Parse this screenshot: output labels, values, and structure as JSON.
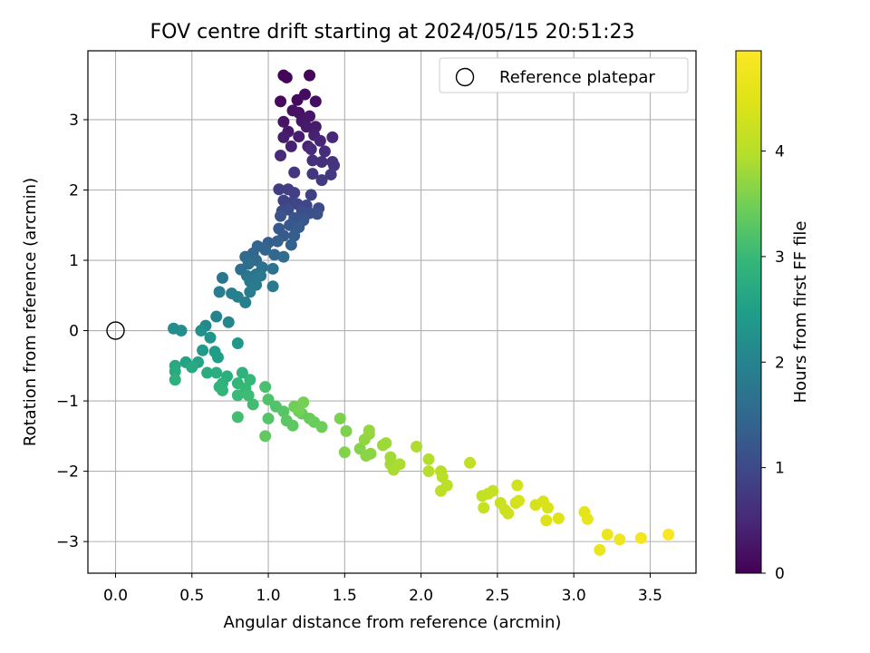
{
  "chart_data": {
    "type": "scatter",
    "title": "FOV centre drift starting at 2024/05/15 20:51:23",
    "xlabel": "Angular distance from reference (arcmin)",
    "ylabel": "Rotation from reference (arcmin)",
    "xlim": [
      -0.181,
      3.8
    ],
    "ylim": [
      -3.45,
      3.98
    ],
    "xticks": [
      "0.0",
      "0.5",
      "1.0",
      "1.5",
      "2.0",
      "2.5",
      "3.0",
      "3.5"
    ],
    "xtick_values": [
      0,
      0.5,
      1.0,
      1.5,
      2.0,
      2.5,
      3.0,
      3.5
    ],
    "yticks": [
      "−3",
      "−2",
      "−1",
      "0",
      "1",
      "2",
      "3"
    ],
    "ytick_values": [
      -3,
      -2,
      -1,
      0,
      1,
      2,
      3
    ],
    "grid": true,
    "legend": {
      "position": "top-right",
      "label": "Reference platepar"
    },
    "reference_point": {
      "x": 0.0,
      "y": 0.0
    },
    "colorbar": {
      "label": "Hours from first FF file",
      "colormap": "viridis",
      "range": [
        0,
        4.95
      ],
      "ticks": [
        "0",
        "1",
        "2",
        "3",
        "4"
      ],
      "tick_values": [
        0,
        1,
        2,
        3,
        4
      ]
    },
    "points": [
      {
        "x": 1.1,
        "y": 3.63,
        "h": 0.05
      },
      {
        "x": 1.12,
        "y": 3.6,
        "h": 0.05
      },
      {
        "x": 1.27,
        "y": 3.63,
        "h": 0.07
      },
      {
        "x": 1.08,
        "y": 3.26,
        "h": 0.12
      },
      {
        "x": 1.19,
        "y": 3.28,
        "h": 0.12
      },
      {
        "x": 1.24,
        "y": 3.36,
        "h": 0.15
      },
      {
        "x": 1.31,
        "y": 3.26,
        "h": 0.17
      },
      {
        "x": 1.16,
        "y": 3.13,
        "h": 0.2
      },
      {
        "x": 1.2,
        "y": 3.1,
        "h": 0.22
      },
      {
        "x": 1.1,
        "y": 2.97,
        "h": 0.25
      },
      {
        "x": 1.22,
        "y": 2.98,
        "h": 0.27
      },
      {
        "x": 1.27,
        "y": 3.05,
        "h": 0.28
      },
      {
        "x": 1.13,
        "y": 2.83,
        "h": 0.3
      },
      {
        "x": 1.25,
        "y": 2.9,
        "h": 0.32
      },
      {
        "x": 1.31,
        "y": 2.9,
        "h": 0.33
      },
      {
        "x": 1.1,
        "y": 2.75,
        "h": 0.35
      },
      {
        "x": 1.2,
        "y": 2.76,
        "h": 0.37
      },
      {
        "x": 1.3,
        "y": 2.78,
        "h": 0.4
      },
      {
        "x": 1.15,
        "y": 2.62,
        "h": 0.42
      },
      {
        "x": 1.26,
        "y": 2.62,
        "h": 0.45
      },
      {
        "x": 1.34,
        "y": 2.7,
        "h": 0.47
      },
      {
        "x": 1.42,
        "y": 2.75,
        "h": 0.5
      },
      {
        "x": 1.08,
        "y": 2.49,
        "h": 0.52
      },
      {
        "x": 1.28,
        "y": 2.58,
        "h": 0.55
      },
      {
        "x": 1.37,
        "y": 2.55,
        "h": 0.57
      },
      {
        "x": 1.29,
        "y": 2.42,
        "h": 0.6
      },
      {
        "x": 1.35,
        "y": 2.4,
        "h": 0.62
      },
      {
        "x": 1.42,
        "y": 2.4,
        "h": 0.65
      },
      {
        "x": 1.43,
        "y": 2.35,
        "h": 0.67
      },
      {
        "x": 1.17,
        "y": 2.25,
        "h": 0.7
      },
      {
        "x": 1.29,
        "y": 2.23,
        "h": 0.72
      },
      {
        "x": 1.41,
        "y": 2.22,
        "h": 0.75
      },
      {
        "x": 1.35,
        "y": 2.14,
        "h": 0.77
      },
      {
        "x": 1.07,
        "y": 2.01,
        "h": 0.8
      },
      {
        "x": 1.13,
        "y": 2.01,
        "h": 0.82
      },
      {
        "x": 1.17,
        "y": 1.96,
        "h": 0.85
      },
      {
        "x": 1.28,
        "y": 1.93,
        "h": 0.87
      },
      {
        "x": 1.1,
        "y": 1.85,
        "h": 0.9
      },
      {
        "x": 1.15,
        "y": 1.82,
        "h": 0.92
      },
      {
        "x": 1.19,
        "y": 1.8,
        "h": 0.95
      },
      {
        "x": 1.25,
        "y": 1.78,
        "h": 0.97
      },
      {
        "x": 1.33,
        "y": 1.74,
        "h": 1.0
      },
      {
        "x": 1.09,
        "y": 1.7,
        "h": 1.02
      },
      {
        "x": 1.13,
        "y": 1.72,
        "h": 1.05
      },
      {
        "x": 1.22,
        "y": 1.7,
        "h": 1.07
      },
      {
        "x": 1.27,
        "y": 1.67,
        "h": 1.1
      },
      {
        "x": 1.32,
        "y": 1.66,
        "h": 1.12
      },
      {
        "x": 1.08,
        "y": 1.63,
        "h": 1.15
      },
      {
        "x": 1.17,
        "y": 1.6,
        "h": 1.17
      },
      {
        "x": 1.23,
        "y": 1.57,
        "h": 1.2
      },
      {
        "x": 1.14,
        "y": 1.5,
        "h": 1.22
      },
      {
        "x": 1.07,
        "y": 1.45,
        "h": 1.25
      },
      {
        "x": 1.2,
        "y": 1.47,
        "h": 1.27
      },
      {
        "x": 1.1,
        "y": 1.35,
        "h": 1.3
      },
      {
        "x": 1.17,
        "y": 1.35,
        "h": 1.32
      },
      {
        "x": 1.0,
        "y": 1.25,
        "h": 1.35
      },
      {
        "x": 1.06,
        "y": 1.27,
        "h": 1.37
      },
      {
        "x": 1.15,
        "y": 1.22,
        "h": 1.4
      },
      {
        "x": 0.93,
        "y": 1.2,
        "h": 1.42
      },
      {
        "x": 0.98,
        "y": 1.15,
        "h": 1.45
      },
      {
        "x": 0.9,
        "y": 1.1,
        "h": 1.47
      },
      {
        "x": 1.04,
        "y": 1.08,
        "h": 1.5
      },
      {
        "x": 0.85,
        "y": 1.05,
        "h": 1.52
      },
      {
        "x": 0.92,
        "y": 1.0,
        "h": 1.55
      },
      {
        "x": 1.1,
        "y": 1.05,
        "h": 1.57
      },
      {
        "x": 0.82,
        "y": 0.87,
        "h": 1.6
      },
      {
        "x": 0.87,
        "y": 0.95,
        "h": 1.62
      },
      {
        "x": 0.96,
        "y": 0.9,
        "h": 1.65
      },
      {
        "x": 1.03,
        "y": 0.88,
        "h": 1.67
      },
      {
        "x": 0.86,
        "y": 0.78,
        "h": 1.7
      },
      {
        "x": 0.92,
        "y": 0.8,
        "h": 1.72
      },
      {
        "x": 0.7,
        "y": 0.75,
        "h": 1.75
      },
      {
        "x": 0.88,
        "y": 0.7,
        "h": 1.77
      },
      {
        "x": 0.95,
        "y": 0.78,
        "h": 1.8
      },
      {
        "x": 0.92,
        "y": 0.65,
        "h": 1.82
      },
      {
        "x": 1.03,
        "y": 0.63,
        "h": 1.85
      },
      {
        "x": 0.88,
        "y": 0.55,
        "h": 1.87
      },
      {
        "x": 0.68,
        "y": 0.55,
        "h": 1.9
      },
      {
        "x": 0.76,
        "y": 0.53,
        "h": 1.92
      },
      {
        "x": 0.8,
        "y": 0.48,
        "h": 1.95
      },
      {
        "x": 0.85,
        "y": 0.4,
        "h": 1.97
      },
      {
        "x": 0.66,
        "y": 0.2,
        "h": 2.0
      },
      {
        "x": 0.74,
        "y": 0.12,
        "h": 2.05
      },
      {
        "x": 0.59,
        "y": 0.07,
        "h": 2.1
      },
      {
        "x": 0.38,
        "y": 0.03,
        "h": 2.15
      },
      {
        "x": 0.43,
        "y": 0.0,
        "h": 2.2
      },
      {
        "x": 0.56,
        "y": 0.0,
        "h": 2.25
      },
      {
        "x": 0.62,
        "y": -0.1,
        "h": 2.3
      },
      {
        "x": 0.8,
        "y": -0.18,
        "h": 2.35
      },
      {
        "x": 0.57,
        "y": -0.28,
        "h": 2.4
      },
      {
        "x": 0.65,
        "y": -0.3,
        "h": 2.45
      },
      {
        "x": 0.67,
        "y": -0.38,
        "h": 2.5
      },
      {
        "x": 0.46,
        "y": -0.45,
        "h": 2.55
      },
      {
        "x": 0.54,
        "y": -0.45,
        "h": 2.6
      },
      {
        "x": 0.39,
        "y": -0.5,
        "h": 2.65
      },
      {
        "x": 0.5,
        "y": -0.52,
        "h": 2.7
      },
      {
        "x": 0.39,
        "y": -0.58,
        "h": 2.72
      },
      {
        "x": 0.6,
        "y": -0.6,
        "h": 2.75
      },
      {
        "x": 0.66,
        "y": -0.6,
        "h": 2.77
      },
      {
        "x": 0.73,
        "y": -0.65,
        "h": 2.8
      },
      {
        "x": 0.39,
        "y": -0.7,
        "h": 2.82
      },
      {
        "x": 0.83,
        "y": -0.6,
        "h": 2.85
      },
      {
        "x": 0.7,
        "y": -0.75,
        "h": 2.87
      },
      {
        "x": 0.68,
        "y": -0.8,
        "h": 2.9
      },
      {
        "x": 0.7,
        "y": -0.85,
        "h": 2.92
      },
      {
        "x": 0.8,
        "y": -0.75,
        "h": 2.95
      },
      {
        "x": 0.88,
        "y": -0.7,
        "h": 2.97
      },
      {
        "x": 0.85,
        "y": -0.82,
        "h": 3.0
      },
      {
        "x": 0.8,
        "y": -0.92,
        "h": 3.02
      },
      {
        "x": 0.87,
        "y": -0.92,
        "h": 3.05
      },
      {
        "x": 0.9,
        "y": -1.05,
        "h": 3.07
      },
      {
        "x": 0.8,
        "y": -1.23,
        "h": 3.1
      },
      {
        "x": 0.98,
        "y": -0.8,
        "h": 3.15
      },
      {
        "x": 1.0,
        "y": -0.98,
        "h": 3.2
      },
      {
        "x": 1.05,
        "y": -1.08,
        "h": 3.22
      },
      {
        "x": 1.0,
        "y": -1.25,
        "h": 3.25
      },
      {
        "x": 1.1,
        "y": -1.15,
        "h": 3.27
      },
      {
        "x": 1.12,
        "y": -1.28,
        "h": 3.3
      },
      {
        "x": 1.16,
        "y": -1.35,
        "h": 3.32
      },
      {
        "x": 0.98,
        "y": -1.5,
        "h": 3.35
      },
      {
        "x": 1.22,
        "y": -1.18,
        "h": 3.37
      },
      {
        "x": 1.27,
        "y": -1.25,
        "h": 3.4
      },
      {
        "x": 1.3,
        "y": -1.3,
        "h": 3.42
      },
      {
        "x": 1.35,
        "y": -1.37,
        "h": 3.45
      },
      {
        "x": 1.17,
        "y": -1.08,
        "h": 3.47
      },
      {
        "x": 1.2,
        "y": -1.15,
        "h": 3.5
      },
      {
        "x": 1.23,
        "y": -1.02,
        "h": 3.52
      },
      {
        "x": 1.47,
        "y": -1.25,
        "h": 3.55
      },
      {
        "x": 1.51,
        "y": -1.43,
        "h": 3.57
      },
      {
        "x": 1.5,
        "y": -1.73,
        "h": 3.6
      },
      {
        "x": 1.6,
        "y": -1.68,
        "h": 3.62
      },
      {
        "x": 1.64,
        "y": -1.78,
        "h": 3.65
      },
      {
        "x": 1.67,
        "y": -1.75,
        "h": 3.67
      },
      {
        "x": 1.63,
        "y": -1.55,
        "h": 3.7
      },
      {
        "x": 1.66,
        "y": -1.47,
        "h": 3.72
      },
      {
        "x": 1.66,
        "y": -1.42,
        "h": 3.75
      },
      {
        "x": 1.75,
        "y": -1.63,
        "h": 3.77
      },
      {
        "x": 1.77,
        "y": -1.6,
        "h": 3.8
      },
      {
        "x": 1.8,
        "y": -1.8,
        "h": 3.82
      },
      {
        "x": 1.8,
        "y": -1.9,
        "h": 3.85
      },
      {
        "x": 1.82,
        "y": -1.98,
        "h": 3.87
      },
      {
        "x": 1.86,
        "y": -1.9,
        "h": 3.9
      },
      {
        "x": 1.97,
        "y": -1.65,
        "h": 3.92
      },
      {
        "x": 2.05,
        "y": -1.83,
        "h": 3.95
      },
      {
        "x": 2.05,
        "y": -2.0,
        "h": 3.97
      },
      {
        "x": 2.13,
        "y": -2.0,
        "h": 4.0
      },
      {
        "x": 2.14,
        "y": -2.08,
        "h": 4.02
      },
      {
        "x": 2.17,
        "y": -2.2,
        "h": 4.05
      },
      {
        "x": 2.13,
        "y": -2.28,
        "h": 4.07
      },
      {
        "x": 2.32,
        "y": -1.88,
        "h": 4.1
      },
      {
        "x": 2.4,
        "y": -2.35,
        "h": 4.12
      },
      {
        "x": 2.44,
        "y": -2.32,
        "h": 4.15
      },
      {
        "x": 2.47,
        "y": -2.28,
        "h": 4.17
      },
      {
        "x": 2.41,
        "y": -2.52,
        "h": 4.2
      },
      {
        "x": 2.52,
        "y": -2.45,
        "h": 4.22
      },
      {
        "x": 2.55,
        "y": -2.55,
        "h": 4.25
      },
      {
        "x": 2.57,
        "y": -2.6,
        "h": 4.27
      },
      {
        "x": 2.62,
        "y": -2.45,
        "h": 4.3
      },
      {
        "x": 2.63,
        "y": -2.2,
        "h": 4.32
      },
      {
        "x": 2.64,
        "y": -2.42,
        "h": 4.35
      },
      {
        "x": 2.75,
        "y": -2.48,
        "h": 4.37
      },
      {
        "x": 2.8,
        "y": -2.43,
        "h": 4.4
      },
      {
        "x": 2.83,
        "y": -2.52,
        "h": 4.42
      },
      {
        "x": 2.82,
        "y": -2.7,
        "h": 4.45
      },
      {
        "x": 2.9,
        "y": -2.67,
        "h": 4.5
      },
      {
        "x": 3.07,
        "y": -2.58,
        "h": 4.55
      },
      {
        "x": 3.09,
        "y": -2.68,
        "h": 4.6
      },
      {
        "x": 3.17,
        "y": -3.12,
        "h": 4.65
      },
      {
        "x": 3.22,
        "y": -2.9,
        "h": 4.7
      },
      {
        "x": 3.3,
        "y": -2.97,
        "h": 4.75
      },
      {
        "x": 3.44,
        "y": -2.95,
        "h": 4.8
      },
      {
        "x": 3.62,
        "y": -2.9,
        "h": 4.9
      }
    ]
  }
}
